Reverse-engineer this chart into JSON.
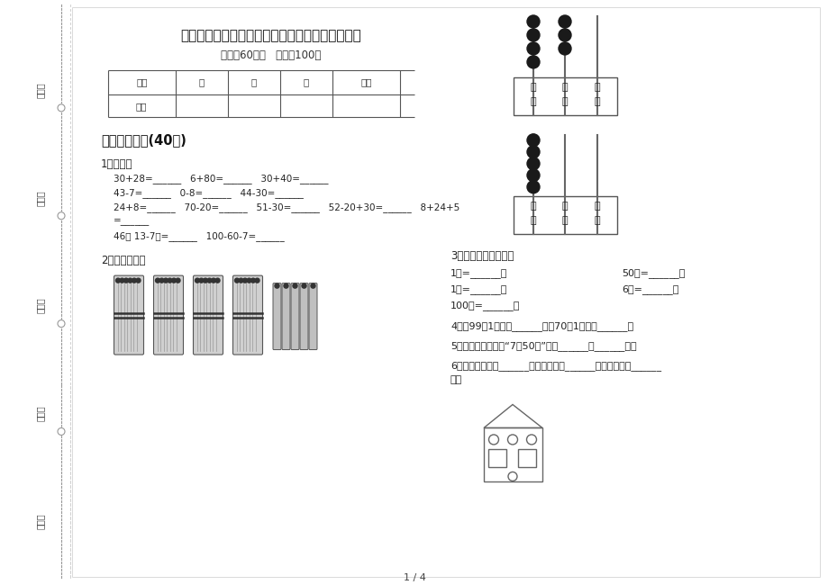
{
  "bg_color": "#ffffff",
  "title": "新人教版一年级下学期数学摸底突破期末模拟试卷",
  "subtitle": "时间：60分钟   渏分：100分",
  "table_headers": [
    "题号",
    "一",
    "二",
    "三",
    "总分"
  ],
  "table_row": "得分",
  "section1_title": "一、基础练习(40分)",
  "q1_title": "1．口算。",
  "q1_lines": [
    "30+28=______   6+80=______   30+40=______",
    "43-7=______   0-8=______   44-30=______",
    "24+8=______   70-20=______   51-30=______   52-20+30=______   8+24+5",
    "=______",
    "46（ 13-7）=______   100-60-7=______"
  ],
  "q2_title": "2．看图写数。",
  "q3_title": "3．想一想，填一填。",
  "q3_left": [
    "1元=______角",
    "1角=______分",
    "100分=______元"
  ],
  "q3_right": [
    "50角=______元",
    "6元=______角",
    ""
  ],
  "q4": "4．比99大1的数是______，比70儇1的数是______。",
  "q5": "5．在商品标价牌上“7．50元”表示______元______角。",
  "q6_line1": "6．下图中，圆有______个，正方形有______个，三角形有______",
  "q6_line2": "个。",
  "page_num": "1 / 4",
  "left_labels": [
    "考号：",
    "考场：",
    "姓名：",
    "班级：",
    "学校："
  ]
}
